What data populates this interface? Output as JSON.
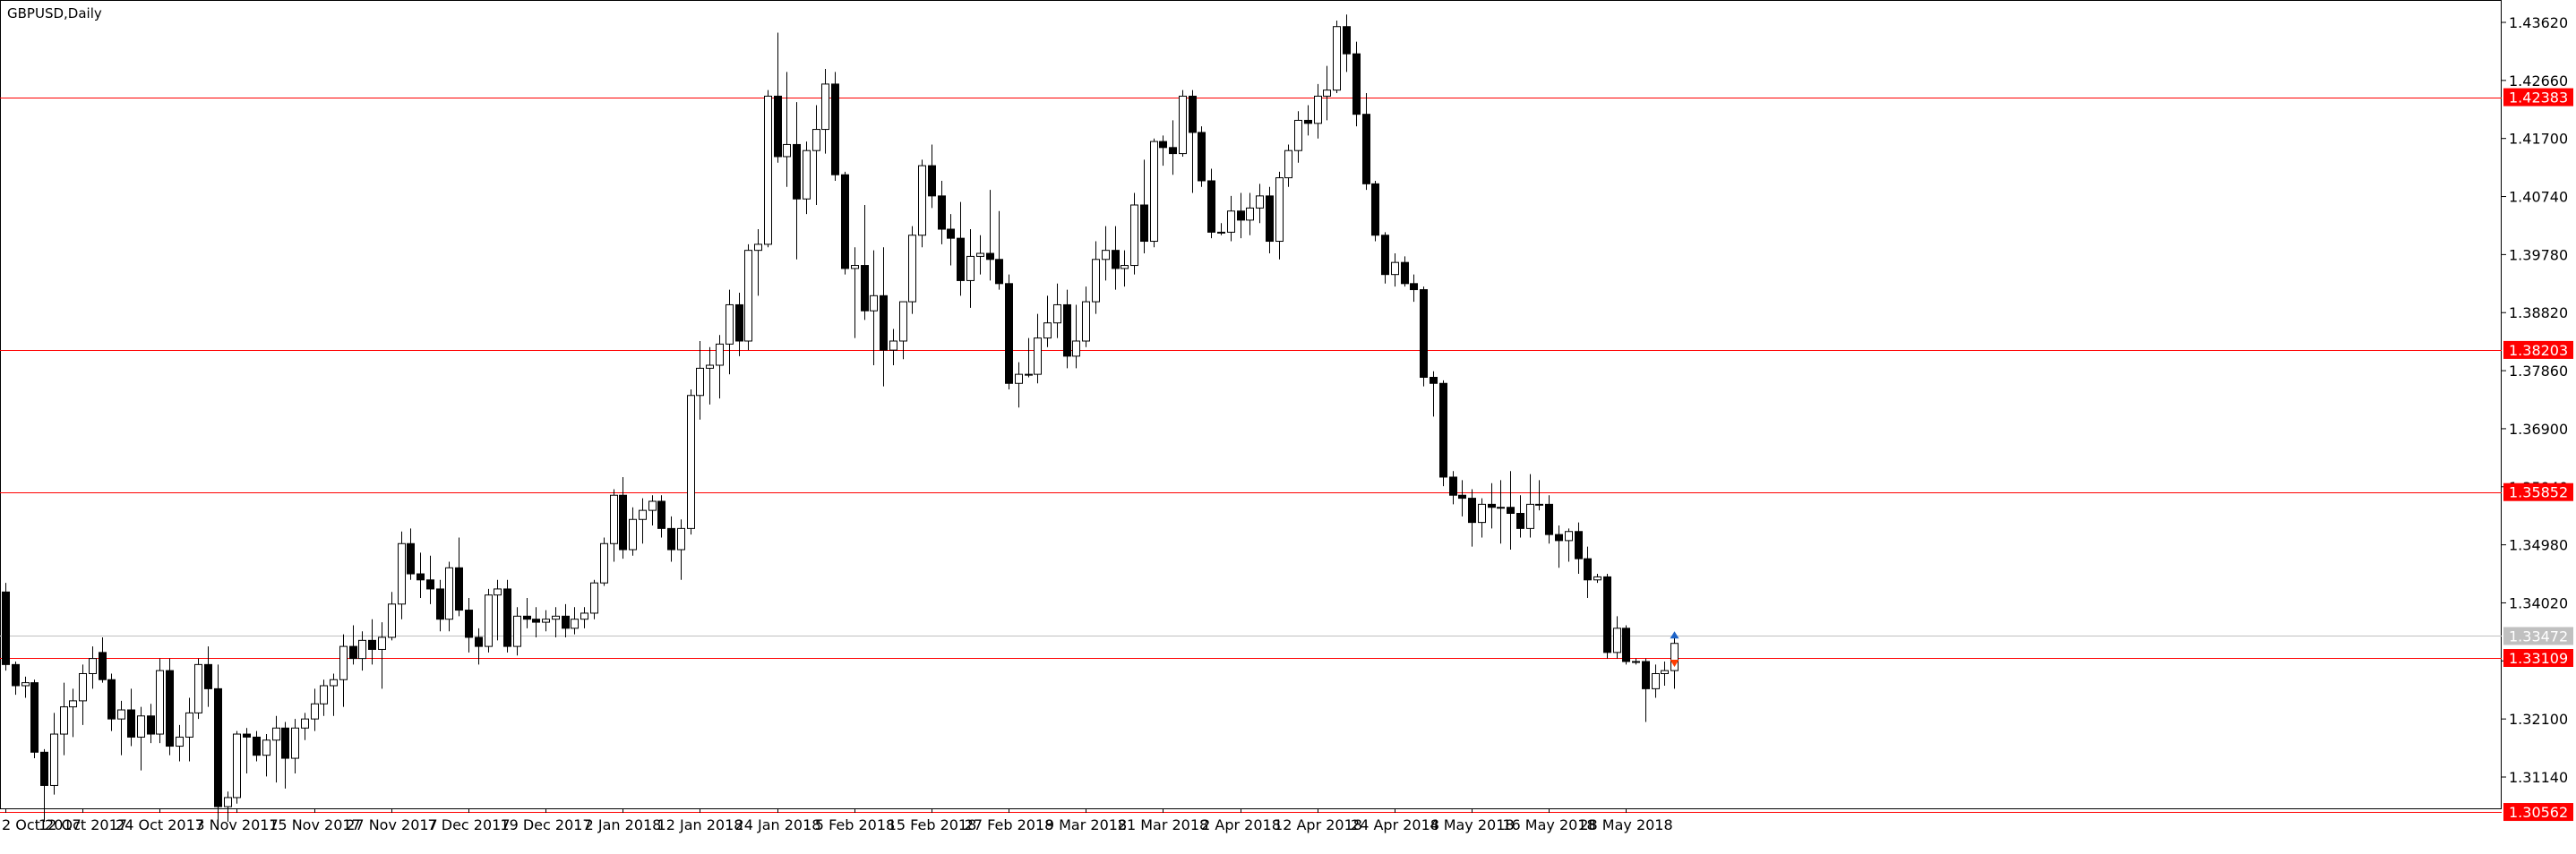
{
  "chart_data": {
    "type": "candlestick",
    "title": "GBPUSD,Daily",
    "y_ticks": [
      "1.43620",
      "1.42660",
      "1.41700",
      "1.40740",
      "1.39780",
      "1.38820",
      "1.37860",
      "1.36900",
      "1.35940",
      "1.34980",
      "1.34020",
      "1.33060",
      "1.32100",
      "1.31140"
    ],
    "x_ticks": [
      {
        "label": "2 Oct 2017",
        "index": 0
      },
      {
        "label": "12 Oct 2017",
        "index": 8
      },
      {
        "label": "24 Oct 2017",
        "index": 16
      },
      {
        "label": "3 Nov 2017",
        "index": 24
      },
      {
        "label": "15 Nov 2017",
        "index": 32
      },
      {
        "label": "27 Nov 2017",
        "index": 40
      },
      {
        "label": "7 Dec 2017",
        "index": 48
      },
      {
        "label": "19 Dec 2017",
        "index": 56
      },
      {
        "label": "2 Jan 2018",
        "index": 64
      },
      {
        "label": "12 Jan 2018",
        "index": 72
      },
      {
        "label": "24 Jan 2018",
        "index": 80
      },
      {
        "label": "5 Feb 2018",
        "index": 88
      },
      {
        "label": "15 Feb 2018",
        "index": 96
      },
      {
        "label": "27 Feb 2018",
        "index": 104
      },
      {
        "label": "9 Mar 2018",
        "index": 112
      },
      {
        "label": "21 Mar 2018",
        "index": 120
      },
      {
        "label": "2 Apr 2018",
        "index": 128
      },
      {
        "label": "12 Apr 2018",
        "index": 136
      },
      {
        "label": "24 Apr 2018",
        "index": 144
      },
      {
        "label": "4 May 2018",
        "index": 152
      },
      {
        "label": "16 May 2018",
        "index": 160
      },
      {
        "label": "28 May 2018",
        "index": 168
      }
    ],
    "levels": [
      "1.42383",
      "1.38203",
      "1.35852",
      "1.33109",
      "1.30562"
    ],
    "current_price": "1.33472",
    "colors": {
      "level": "#ff0000",
      "level_label_bg": "#ff0000",
      "current_price_bg": "#c0c0c0",
      "candle": "#000000",
      "arrow_up": "#1e64c8",
      "arrow_down": "#ff3c00"
    },
    "candles": [
      {
        "o": 1.342,
        "h": 1.3435,
        "l": 1.329,
        "c": 1.33
      },
      {
        "o": 1.33,
        "h": 1.3305,
        "l": 1.325,
        "c": 1.3265
      },
      {
        "o": 1.3265,
        "h": 1.328,
        "l": 1.3245,
        "c": 1.327
      },
      {
        "o": 1.327,
        "h": 1.3275,
        "l": 1.3145,
        "c": 1.3155
      },
      {
        "o": 1.3155,
        "h": 1.316,
        "l": 1.304,
        "c": 1.31
      },
      {
        "o": 1.31,
        "h": 1.322,
        "l": 1.3085,
        "c": 1.3185
      },
      {
        "o": 1.3185,
        "h": 1.327,
        "l": 1.315,
        "c": 1.323
      },
      {
        "o": 1.323,
        "h": 1.326,
        "l": 1.318,
        "c": 1.324
      },
      {
        "o": 1.324,
        "h": 1.33,
        "l": 1.32,
        "c": 1.3285
      },
      {
        "o": 1.3285,
        "h": 1.333,
        "l": 1.326,
        "c": 1.331
      },
      {
        "o": 1.332,
        "h": 1.3345,
        "l": 1.327,
        "c": 1.3275
      },
      {
        "o": 1.3275,
        "h": 1.3285,
        "l": 1.319,
        "c": 1.321
      },
      {
        "o": 1.321,
        "h": 1.324,
        "l": 1.315,
        "c": 1.3225
      },
      {
        "o": 1.3225,
        "h": 1.326,
        "l": 1.3165,
        "c": 1.318
      },
      {
        "o": 1.318,
        "h": 1.323,
        "l": 1.3125,
        "c": 1.3215
      },
      {
        "o": 1.3215,
        "h": 1.3235,
        "l": 1.317,
        "c": 1.3185
      },
      {
        "o": 1.3185,
        "h": 1.331,
        "l": 1.317,
        "c": 1.329
      },
      {
        "o": 1.329,
        "h": 1.331,
        "l": 1.315,
        "c": 1.3165
      },
      {
        "o": 1.3165,
        "h": 1.32,
        "l": 1.314,
        "c": 1.318
      },
      {
        "o": 1.318,
        "h": 1.3245,
        "l": 1.314,
        "c": 1.322
      },
      {
        "o": 1.322,
        "h": 1.331,
        "l": 1.321,
        "c": 1.33
      },
      {
        "o": 1.33,
        "h": 1.333,
        "l": 1.323,
        "c": 1.326
      },
      {
        "o": 1.326,
        "h": 1.33,
        "l": 1.304,
        "c": 1.3065
      },
      {
        "o": 1.3065,
        "h": 1.309,
        "l": 1.304,
        "c": 1.308
      },
      {
        "o": 1.308,
        "h": 1.319,
        "l": 1.307,
        "c": 1.3185
      },
      {
        "o": 1.3185,
        "h": 1.3195,
        "l": 1.312,
        "c": 1.318
      },
      {
        "o": 1.318,
        "h": 1.319,
        "l": 1.314,
        "c": 1.315
      },
      {
        "o": 1.315,
        "h": 1.3185,
        "l": 1.3115,
        "c": 1.3175
      },
      {
        "o": 1.3175,
        "h": 1.3215,
        "l": 1.3105,
        "c": 1.3195
      },
      {
        "o": 1.3195,
        "h": 1.3205,
        "l": 1.3095,
        "c": 1.3145
      },
      {
        "o": 1.3145,
        "h": 1.321,
        "l": 1.312,
        "c": 1.3195
      },
      {
        "o": 1.3195,
        "h": 1.322,
        "l": 1.3175,
        "c": 1.321
      },
      {
        "o": 1.321,
        "h": 1.326,
        "l": 1.319,
        "c": 1.3235
      },
      {
        "o": 1.3235,
        "h": 1.3275,
        "l": 1.3215,
        "c": 1.3265
      },
      {
        "o": 1.3265,
        "h": 1.3285,
        "l": 1.3215,
        "c": 1.3275
      },
      {
        "o": 1.3275,
        "h": 1.335,
        "l": 1.323,
        "c": 1.333
      },
      {
        "o": 1.333,
        "h": 1.3365,
        "l": 1.33,
        "c": 1.331
      },
      {
        "o": 1.331,
        "h": 1.3355,
        "l": 1.329,
        "c": 1.334
      },
      {
        "o": 1.334,
        "h": 1.3375,
        "l": 1.33,
        "c": 1.3325
      },
      {
        "o": 1.3325,
        "h": 1.337,
        "l": 1.326,
        "c": 1.3345
      },
      {
        "o": 1.3345,
        "h": 1.342,
        "l": 1.334,
        "c": 1.34
      },
      {
        "o": 1.34,
        "h": 1.352,
        "l": 1.3375,
        "c": 1.35
      },
      {
        "o": 1.35,
        "h": 1.3525,
        "l": 1.344,
        "c": 1.345
      },
      {
        "o": 1.345,
        "h": 1.3485,
        "l": 1.341,
        "c": 1.344
      },
      {
        "o": 1.344,
        "h": 1.348,
        "l": 1.34,
        "c": 1.3425
      },
      {
        "o": 1.3425,
        "h": 1.344,
        "l": 1.3355,
        "c": 1.3375
      },
      {
        "o": 1.3375,
        "h": 1.347,
        "l": 1.3355,
        "c": 1.346
      },
      {
        "o": 1.346,
        "h": 1.351,
        "l": 1.338,
        "c": 1.339
      },
      {
        "o": 1.339,
        "h": 1.341,
        "l": 1.332,
        "c": 1.3345
      },
      {
        "o": 1.3345,
        "h": 1.336,
        "l": 1.33,
        "c": 1.333
      },
      {
        "o": 1.333,
        "h": 1.3425,
        "l": 1.332,
        "c": 1.3415
      },
      {
        "o": 1.3415,
        "h": 1.344,
        "l": 1.334,
        "c": 1.3425
      },
      {
        "o": 1.3425,
        "h": 1.344,
        "l": 1.332,
        "c": 1.333
      },
      {
        "o": 1.333,
        "h": 1.3395,
        "l": 1.3315,
        "c": 1.338
      },
      {
        "o": 1.338,
        "h": 1.341,
        "l": 1.336,
        "c": 1.3375
      },
      {
        "o": 1.3375,
        "h": 1.3395,
        "l": 1.3345,
        "c": 1.337
      },
      {
        "o": 1.337,
        "h": 1.339,
        "l": 1.3355,
        "c": 1.3375
      },
      {
        "o": 1.3375,
        "h": 1.3395,
        "l": 1.3345,
        "c": 1.338
      },
      {
        "o": 1.338,
        "h": 1.34,
        "l": 1.3345,
        "c": 1.336
      },
      {
        "o": 1.336,
        "h": 1.3395,
        "l": 1.335,
        "c": 1.3375
      },
      {
        "o": 1.3375,
        "h": 1.3395,
        "l": 1.336,
        "c": 1.3385
      },
      {
        "o": 1.3385,
        "h": 1.344,
        "l": 1.3375,
        "c": 1.3435
      },
      {
        "o": 1.3435,
        "h": 1.351,
        "l": 1.343,
        "c": 1.35
      },
      {
        "o": 1.35,
        "h": 1.359,
        "l": 1.347,
        "c": 1.358
      },
      {
        "o": 1.358,
        "h": 1.361,
        "l": 1.3475,
        "c": 1.349
      },
      {
        "o": 1.349,
        "h": 1.356,
        "l": 1.348,
        "c": 1.354
      },
      {
        "o": 1.354,
        "h": 1.3575,
        "l": 1.35,
        "c": 1.3555
      },
      {
        "o": 1.3555,
        "h": 1.358,
        "l": 1.353,
        "c": 1.357
      },
      {
        "o": 1.357,
        "h": 1.358,
        "l": 1.351,
        "c": 1.3525
      },
      {
        "o": 1.3525,
        "h": 1.3545,
        "l": 1.347,
        "c": 1.349
      },
      {
        "o": 1.349,
        "h": 1.354,
        "l": 1.344,
        "c": 1.3525
      },
      {
        "o": 1.3525,
        "h": 1.3755,
        "l": 1.3515,
        "c": 1.3745
      },
      {
        "o": 1.3745,
        "h": 1.3835,
        "l": 1.3705,
        "c": 1.379
      },
      {
        "o": 1.379,
        "h": 1.3825,
        "l": 1.373,
        "c": 1.3795
      },
      {
        "o": 1.3795,
        "h": 1.3845,
        "l": 1.374,
        "c": 1.383
      },
      {
        "o": 1.383,
        "h": 1.392,
        "l": 1.378,
        "c": 1.3895
      },
      {
        "o": 1.3895,
        "h": 1.3915,
        "l": 1.381,
        "c": 1.3835
      },
      {
        "o": 1.3835,
        "h": 1.3995,
        "l": 1.382,
        "c": 1.3985
      },
      {
        "o": 1.3985,
        "h": 1.402,
        "l": 1.391,
        "c": 1.3995
      },
      {
        "o": 1.3995,
        "h": 1.425,
        "l": 1.399,
        "c": 1.424
      },
      {
        "o": 1.424,
        "h": 1.4345,
        "l": 1.413,
        "c": 1.414
      },
      {
        "o": 1.414,
        "h": 1.428,
        "l": 1.409,
        "c": 1.416
      },
      {
        "o": 1.416,
        "h": 1.423,
        "l": 1.397,
        "c": 1.407
      },
      {
        "o": 1.407,
        "h": 1.4165,
        "l": 1.4045,
        "c": 1.415
      },
      {
        "o": 1.415,
        "h": 1.4225,
        "l": 1.406,
        "c": 1.4185
      },
      {
        "o": 1.4185,
        "h": 1.4285,
        "l": 1.4145,
        "c": 1.426
      },
      {
        "o": 1.426,
        "h": 1.428,
        "l": 1.41,
        "c": 1.411
      },
      {
        "o": 1.411,
        "h": 1.4115,
        "l": 1.3945,
        "c": 1.3955
      },
      {
        "o": 1.3955,
        "h": 1.399,
        "l": 1.384,
        "c": 1.396
      },
      {
        "o": 1.396,
        "h": 1.406,
        "l": 1.387,
        "c": 1.3885
      },
      {
        "o": 1.3885,
        "h": 1.3985,
        "l": 1.3795,
        "c": 1.391
      },
      {
        "o": 1.391,
        "h": 1.399,
        "l": 1.376,
        "c": 1.382
      },
      {
        "o": 1.382,
        "h": 1.3855,
        "l": 1.3795,
        "c": 1.3835
      },
      {
        "o": 1.3835,
        "h": 1.389,
        "l": 1.3805,
        "c": 1.39
      },
      {
        "o": 1.39,
        "h": 1.4025,
        "l": 1.388,
        "c": 1.401
      },
      {
        "o": 1.401,
        "h": 1.4135,
        "l": 1.399,
        "c": 1.4125
      },
      {
        "o": 1.4125,
        "h": 1.416,
        "l": 1.4055,
        "c": 1.4075
      },
      {
        "o": 1.4075,
        "h": 1.41,
        "l": 1.3995,
        "c": 1.402
      },
      {
        "o": 1.402,
        "h": 1.4045,
        "l": 1.396,
        "c": 1.4005
      },
      {
        "o": 1.4005,
        "h": 1.4065,
        "l": 1.391,
        "c": 1.3935
      },
      {
        "o": 1.3935,
        "h": 1.402,
        "l": 1.389,
        "c": 1.3975
      },
      {
        "o": 1.3975,
        "h": 1.401,
        "l": 1.3945,
        "c": 1.398
      },
      {
        "o": 1.398,
        "h": 1.4085,
        "l": 1.3935,
        "c": 1.397
      },
      {
        "o": 1.397,
        "h": 1.405,
        "l": 1.392,
        "c": 1.393
      },
      {
        "o": 1.393,
        "h": 1.3945,
        "l": 1.3755,
        "c": 1.3765
      },
      {
        "o": 1.3765,
        "h": 1.38,
        "l": 1.3725,
        "c": 1.378
      },
      {
        "o": 1.378,
        "h": 1.384,
        "l": 1.3775,
        "c": 1.378
      },
      {
        "o": 1.378,
        "h": 1.388,
        "l": 1.3765,
        "c": 1.384
      },
      {
        "o": 1.384,
        "h": 1.391,
        "l": 1.3825,
        "c": 1.3865
      },
      {
        "o": 1.3865,
        "h": 1.393,
        "l": 1.384,
        "c": 1.3895
      },
      {
        "o": 1.3895,
        "h": 1.392,
        "l": 1.379,
        "c": 1.381
      },
      {
        "o": 1.381,
        "h": 1.3895,
        "l": 1.379,
        "c": 1.3835
      },
      {
        "o": 1.3835,
        "h": 1.3925,
        "l": 1.3825,
        "c": 1.39
      },
      {
        "o": 1.39,
        "h": 1.4,
        "l": 1.388,
        "c": 1.397
      },
      {
        "o": 1.397,
        "h": 1.4025,
        "l": 1.3935,
        "c": 1.3985
      },
      {
        "o": 1.3985,
        "h": 1.4025,
        "l": 1.392,
        "c": 1.3955
      },
      {
        "o": 1.3955,
        "h": 1.3985,
        "l": 1.3925,
        "c": 1.396
      },
      {
        "o": 1.396,
        "h": 1.408,
        "l": 1.3945,
        "c": 1.406
      },
      {
        "o": 1.406,
        "h": 1.4135,
        "l": 1.398,
        "c": 1.4
      },
      {
        "o": 1.4,
        "h": 1.417,
        "l": 1.399,
        "c": 1.4165
      },
      {
        "o": 1.4165,
        "h": 1.4175,
        "l": 1.4125,
        "c": 1.4155
      },
      {
        "o": 1.4155,
        "h": 1.42,
        "l": 1.411,
        "c": 1.4145
      },
      {
        "o": 1.4145,
        "h": 1.425,
        "l": 1.414,
        "c": 1.424
      },
      {
        "o": 1.424,
        "h": 1.425,
        "l": 1.408,
        "c": 1.418
      },
      {
        "o": 1.418,
        "h": 1.419,
        "l": 1.409,
        "c": 1.41
      },
      {
        "o": 1.41,
        "h": 1.412,
        "l": 1.4005,
        "c": 1.4015
      },
      {
        "o": 1.4015,
        "h": 1.403,
        "l": 1.401,
        "c": 1.4015
      },
      {
        "o": 1.4015,
        "h": 1.4075,
        "l": 1.4,
        "c": 1.405
      },
      {
        "o": 1.405,
        "h": 1.408,
        "l": 1.4005,
        "c": 1.4035
      },
      {
        "o": 1.4035,
        "h": 1.408,
        "l": 1.401,
        "c": 1.4055
      },
      {
        "o": 1.4055,
        "h": 1.4095,
        "l": 1.403,
        "c": 1.4075
      },
      {
        "o": 1.4075,
        "h": 1.409,
        "l": 1.398,
        "c": 1.4
      },
      {
        "o": 1.4,
        "h": 1.4115,
        "l": 1.397,
        "c": 1.4105
      },
      {
        "o": 1.4105,
        "h": 1.416,
        "l": 1.409,
        "c": 1.415
      },
      {
        "o": 1.415,
        "h": 1.4215,
        "l": 1.413,
        "c": 1.42
      },
      {
        "o": 1.42,
        "h": 1.4225,
        "l": 1.4175,
        "c": 1.4195
      },
      {
        "o": 1.4195,
        "h": 1.426,
        "l": 1.417,
        "c": 1.424
      },
      {
        "o": 1.424,
        "h": 1.429,
        "l": 1.42,
        "c": 1.425
      },
      {
        "o": 1.425,
        "h": 1.4365,
        "l": 1.4245,
        "c": 1.4355
      },
      {
        "o": 1.4355,
        "h": 1.4375,
        "l": 1.428,
        "c": 1.431
      },
      {
        "o": 1.431,
        "h": 1.433,
        "l": 1.419,
        "c": 1.421
      },
      {
        "o": 1.421,
        "h": 1.4245,
        "l": 1.4085,
        "c": 1.4095
      },
      {
        "o": 1.4095,
        "h": 1.41,
        "l": 1.4,
        "c": 1.401
      },
      {
        "o": 1.401,
        "h": 1.4015,
        "l": 1.393,
        "c": 1.3945
      },
      {
        "o": 1.3945,
        "h": 1.398,
        "l": 1.3925,
        "c": 1.3965
      },
      {
        "o": 1.3965,
        "h": 1.3975,
        "l": 1.3925,
        "c": 1.393
      },
      {
        "o": 1.393,
        "h": 1.3945,
        "l": 1.39,
        "c": 1.392
      },
      {
        "o": 1.392,
        "h": 1.3925,
        "l": 1.376,
        "c": 1.3775
      },
      {
        "o": 1.3775,
        "h": 1.3785,
        "l": 1.371,
        "c": 1.3765
      },
      {
        "o": 1.3765,
        "h": 1.377,
        "l": 1.3595,
        "c": 1.361
      },
      {
        "o": 1.361,
        "h": 1.362,
        "l": 1.3565,
        "c": 1.358
      },
      {
        "o": 1.358,
        "h": 1.3605,
        "l": 1.3545,
        "c": 1.3575
      },
      {
        "o": 1.3575,
        "h": 1.359,
        "l": 1.3495,
        "c": 1.3535
      },
      {
        "o": 1.3535,
        "h": 1.3575,
        "l": 1.351,
        "c": 1.3565
      },
      {
        "o": 1.3565,
        "h": 1.36,
        "l": 1.3525,
        "c": 1.356
      },
      {
        "o": 1.356,
        "h": 1.3605,
        "l": 1.35,
        "c": 1.356
      },
      {
        "o": 1.356,
        "h": 1.362,
        "l": 1.349,
        "c": 1.355
      },
      {
        "o": 1.355,
        "h": 1.358,
        "l": 1.351,
        "c": 1.3525
      },
      {
        "o": 1.3525,
        "h": 1.3615,
        "l": 1.351,
        "c": 1.3565
      },
      {
        "o": 1.3565,
        "h": 1.3605,
        "l": 1.3555,
        "c": 1.3565
      },
      {
        "o": 1.3565,
        "h": 1.358,
        "l": 1.35,
        "c": 1.3515
      },
      {
        "o": 1.3515,
        "h": 1.353,
        "l": 1.346,
        "c": 1.3505
      },
      {
        "o": 1.3505,
        "h": 1.3525,
        "l": 1.347,
        "c": 1.352
      },
      {
        "o": 1.352,
        "h": 1.3535,
        "l": 1.345,
        "c": 1.3475
      },
      {
        "o": 1.3475,
        "h": 1.3495,
        "l": 1.341,
        "c": 1.344
      },
      {
        "o": 1.344,
        "h": 1.345,
        "l": 1.3435,
        "c": 1.3445
      },
      {
        "o": 1.3445,
        "h": 1.345,
        "l": 1.331,
        "c": 1.332
      },
      {
        "o": 1.332,
        "h": 1.338,
        "l": 1.331,
        "c": 1.336
      },
      {
        "o": 1.336,
        "h": 1.3365,
        "l": 1.33,
        "c": 1.3305
      },
      {
        "o": 1.3305,
        "h": 1.331,
        "l": 1.33,
        "c": 1.3305
      },
      {
        "o": 1.3305,
        "h": 1.331,
        "l": 1.3205,
        "c": 1.326
      },
      {
        "o": 1.326,
        "h": 1.33,
        "l": 1.3245,
        "c": 1.3285
      },
      {
        "o": 1.3285,
        "h": 1.3305,
        "l": 1.3265,
        "c": 1.329
      },
      {
        "o": 1.329,
        "h": 1.3345,
        "l": 1.326,
        "c": 1.3335
      }
    ]
  }
}
